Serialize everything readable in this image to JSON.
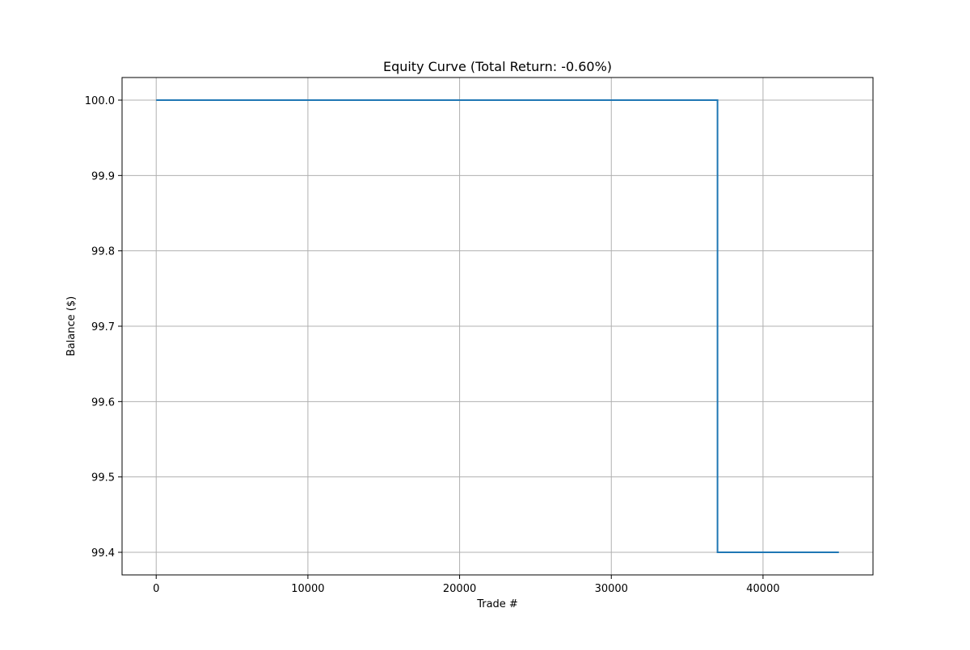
{
  "chart_data": {
    "type": "line",
    "title": "Equity Curve (Total Return: -0.60%)",
    "xlabel": "Trade #",
    "ylabel": "Balance ($)",
    "xlim": [
      -2250,
      47250
    ],
    "ylim": [
      99.37,
      100.03
    ],
    "xticks": [
      0,
      10000,
      20000,
      30000,
      40000
    ],
    "xtick_labels": [
      "0",
      "10000",
      "20000",
      "30000",
      "40000"
    ],
    "yticks": [
      99.4,
      99.5,
      99.6,
      99.7,
      99.8,
      99.9,
      100.0
    ],
    "ytick_labels": [
      "99.4",
      "99.5",
      "99.6",
      "99.7",
      "99.8",
      "99.9",
      "100.0"
    ],
    "grid": true,
    "series": [
      {
        "color": "#1f77b4",
        "x": [
          0,
          37000,
          37000,
          45000
        ],
        "y": [
          100.0,
          100.0,
          99.4,
          99.4
        ]
      }
    ]
  }
}
